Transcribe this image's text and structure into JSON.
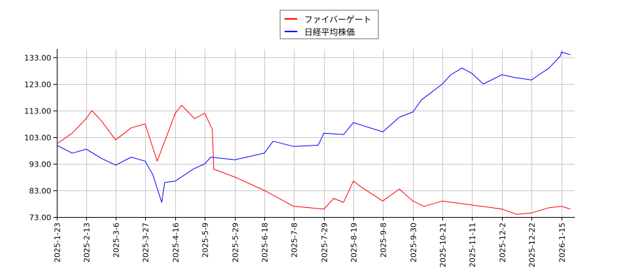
{
  "chart_data": {
    "type": "line",
    "title": "",
    "xlabel": "",
    "ylabel": "",
    "ylim": [
      73,
      135
    ],
    "grid": true,
    "legend_position": "top-center",
    "y_ticks": [
      "73.00",
      "83.00",
      "93.00",
      "103.00",
      "113.00",
      "123.00",
      "133.00"
    ],
    "x_ticks": [
      "2025-1-23",
      "2025-2-13",
      "2025-3-6",
      "2025-3-27",
      "2025-4-16",
      "2025-5-9",
      "2025-5-29",
      "2025-6-18",
      "2025-7-8",
      "2025-7-29",
      "2025-8-19",
      "2025-9-8",
      "2025-9-30",
      "2025-10-21",
      "2025-11-11",
      "2025-12-2",
      "2025-12-22",
      "2026-1-15"
    ],
    "series": [
      {
        "name": "ファイバーゲート",
        "color": "#ff0000",
        "x": [
          "2025-1-23",
          "2025-2-3",
          "2025-2-13",
          "2025-2-17",
          "2025-2-24",
          "2025-3-6",
          "2025-3-17",
          "2025-3-27",
          "2025-4-4",
          "2025-4-8",
          "2025-4-16",
          "2025-4-21",
          "2025-5-1",
          "2025-5-9",
          "2025-5-14",
          "2025-5-15",
          "2025-5-29",
          "2025-6-18",
          "2025-7-8",
          "2025-7-29",
          "2025-8-5",
          "2025-8-12",
          "2025-8-19",
          "2025-8-25",
          "2025-9-8",
          "2025-9-20",
          "2025-9-30",
          "2025-10-8",
          "2025-10-21",
          "2025-11-11",
          "2025-12-2",
          "2025-12-12",
          "2025-12-22",
          "2026-1-5",
          "2026-1-15",
          "2026-1-22"
        ],
        "values": [
          100.5,
          104.5,
          110.0,
          113.0,
          109.0,
          102.0,
          106.5,
          108.0,
          94.0,
          100.0,
          112.0,
          115.0,
          110.0,
          112.0,
          106.0,
          91.0,
          88.0,
          83.0,
          77.0,
          76.0,
          80.0,
          78.5,
          86.5,
          84.0,
          79.0,
          83.5,
          79.0,
          77.0,
          79.0,
          77.5,
          76.0,
          74.0,
          74.5,
          76.5,
          77.0,
          76.0
        ]
      },
      {
        "name": "日経平均株価",
        "color": "#0000ff",
        "x": [
          "2025-1-23",
          "2025-2-3",
          "2025-2-13",
          "2025-2-24",
          "2025-3-6",
          "2025-3-17",
          "2025-3-27",
          "2025-4-1",
          "2025-4-7",
          "2025-4-9",
          "2025-4-16",
          "2025-4-30",
          "2025-5-9",
          "2025-5-13",
          "2025-5-29",
          "2025-6-18",
          "2025-6-24",
          "2025-7-8",
          "2025-7-25",
          "2025-7-29",
          "2025-8-12",
          "2025-8-19",
          "2025-9-8",
          "2025-9-20",
          "2025-9-30",
          "2025-10-6",
          "2025-10-21",
          "2025-10-27",
          "2025-11-4",
          "2025-11-11",
          "2025-11-19",
          "2025-12-2",
          "2025-12-10",
          "2025-12-22",
          "2026-1-5",
          "2026-1-14",
          "2026-1-15",
          "2026-1-22"
        ],
        "values": [
          100.0,
          97.0,
          98.5,
          95.0,
          92.5,
          95.5,
          94.0,
          89.0,
          78.5,
          86.0,
          86.5,
          91.0,
          93.0,
          95.5,
          94.5,
          97.0,
          101.5,
          99.5,
          100.0,
          104.5,
          104.0,
          108.5,
          105.0,
          110.5,
          112.5,
          117.0,
          123.0,
          126.5,
          129.0,
          127.0,
          123.0,
          126.5,
          125.5,
          124.5,
          129.0,
          133.5,
          135.0,
          134.0
        ]
      }
    ]
  },
  "legend": {
    "items": [
      {
        "label": "ファイバーゲート",
        "color": "#ff0000"
      },
      {
        "label": "日経平均株価",
        "color": "#0000ff"
      }
    ]
  }
}
